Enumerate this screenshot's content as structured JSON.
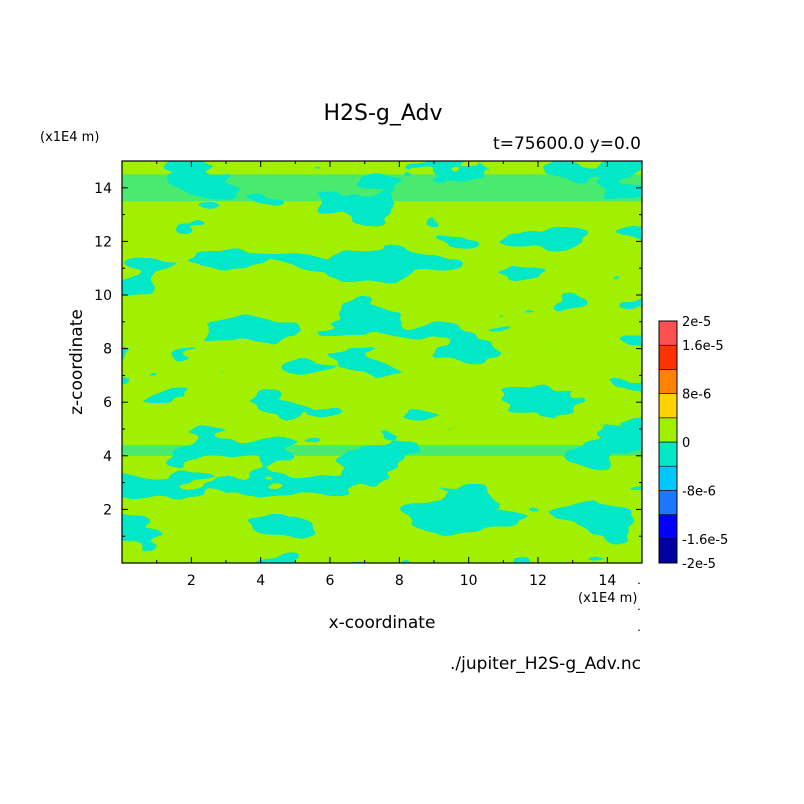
{
  "chart_data": {
    "type": "heatmap",
    "title": "H2S-g_Adv",
    "subtitle": "t=75600.0 y=0.0",
    "xlabel": "x-coordinate",
    "ylabel": "z-coordinate",
    "x_unit": "(x1E4 m)",
    "y_unit": "(x1E4 m)",
    "xlim": [
      0,
      15
    ],
    "ylim": [
      0,
      15
    ],
    "x_ticks": [
      "2",
      "4",
      "6",
      "8",
      "10",
      "12",
      "14"
    ],
    "y_ticks": [
      "2",
      "4",
      "6",
      "8",
      "10",
      "12",
      "14"
    ],
    "filename": "./jupiter_H2S-g_Adv.nc",
    "colorbar": {
      "levels": [
        -2e-05,
        -1.6e-05,
        -1.2e-05,
        -8e-06,
        -4e-06,
        0,
        4e-06,
        8e-06,
        1.2e-05,
        1.6e-05,
        2e-05
      ],
      "colors": [
        "#0000a0",
        "#0000ff",
        "#1e78ff",
        "#00c8ff",
        "#00e8c8",
        "#a0f000",
        "#ffd200",
        "#ff8200",
        "#ff3200",
        "#ff5050"
      ],
      "labels": [
        "2e-5",
        "1.6e-5",
        "8e-6",
        "0",
        "-8e-6",
        "-1.6e-5",
        "-2e-5"
      ],
      "label_values": [
        2e-05,
        1.6e-05,
        8e-06,
        0,
        -8e-06,
        -1.6e-05,
        -2e-05
      ]
    },
    "field_colors": {
      "negative": "#00e8c8",
      "positive": "#a0f000"
    },
    "grid": false
  }
}
